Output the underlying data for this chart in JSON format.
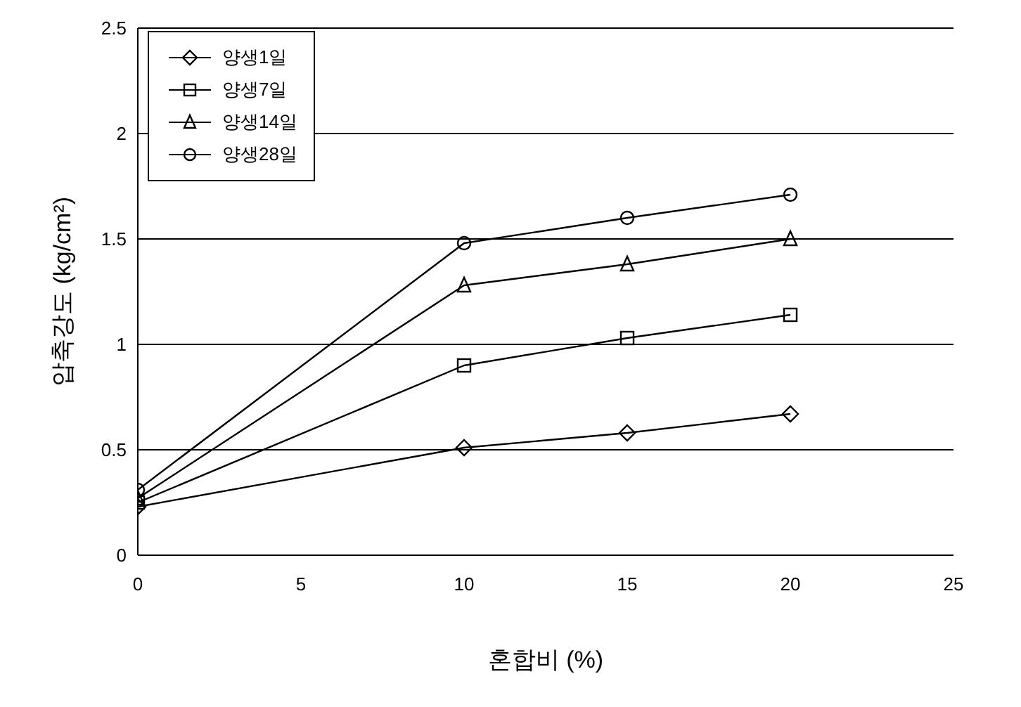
{
  "chart_data": {
    "type": "line",
    "xlabel": "혼합비 (%)",
    "ylabel": "압축강도 (kg/cm²)",
    "x": [
      0,
      10,
      15,
      20
    ],
    "series": [
      {
        "name": "양생1일",
        "color": "#000000",
        "marker": "diamond",
        "values": [
          0.23,
          0.51,
          0.58,
          0.67
        ]
      },
      {
        "name": "양생7일",
        "color": "#000000",
        "marker": "square",
        "values": [
          0.25,
          0.9,
          1.03,
          1.14
        ]
      },
      {
        "name": "양생14일",
        "color": "#000000",
        "marker": "triangle",
        "values": [
          0.27,
          1.28,
          1.38,
          1.5
        ]
      },
      {
        "name": "양생28일",
        "color": "#000000",
        "marker": "circle",
        "values": [
          0.31,
          1.48,
          1.6,
          1.71
        ]
      }
    ],
    "xlim": [
      0,
      25
    ],
    "xticks": [
      0,
      5,
      10,
      15,
      20,
      25
    ],
    "ylim": [
      0,
      2.5
    ],
    "yticks": [
      0,
      0.5,
      1,
      1.5,
      2,
      2.5
    ],
    "grid": "y",
    "legend": "top left",
    "line_style": "solid"
  }
}
